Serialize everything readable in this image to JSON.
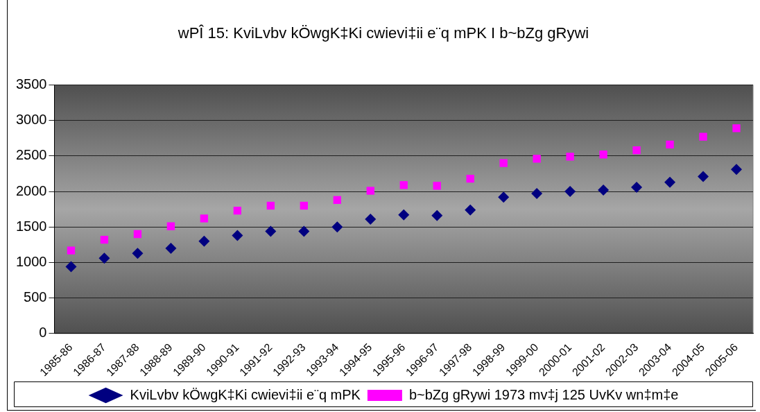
{
  "chart_data": {
    "type": "scatter",
    "title": "wPÎ 15: KviLvbv kÖwgK‡Ki cwievi‡ii e¨q mPK I b~bZg gRywi",
    "categories": [
      "1985-86",
      "1986-87",
      "1987-88",
      "1988-89",
      "1989-90",
      "1990-91",
      "1991-92",
      "1992-93",
      "1993-94",
      "1994-95",
      "1995-96",
      "1996-97",
      "1997-98",
      "1998-99",
      "1999-00",
      "2000-01",
      "2001-02",
      "2002-03",
      "2003-04",
      "2004-05",
      "2005-06"
    ],
    "series": [
      {
        "name": "KviLvbv kÖwgK‡Ki cwievi‡ii e¨q mPK",
        "color": "#000080",
        "marker": "diamond",
        "values": [
          940,
          1060,
          1130,
          1200,
          1300,
          1380,
          1440,
          1440,
          1500,
          1610,
          1670,
          1660,
          1740,
          1920,
          1970,
          2000,
          2020,
          2060,
          2130,
          2210,
          2310
        ]
      },
      {
        "name": "b~bZg gRywi 1973 mv‡j 125 UvKv wn‡m‡e",
        "color": "#ff00ff",
        "marker": "square",
        "values": [
          1170,
          1320,
          1400,
          1510,
          1620,
          1730,
          1800,
          1800,
          1880,
          2010,
          2090,
          2080,
          2180,
          2400,
          2460,
          2490,
          2520,
          2580,
          2660,
          2770,
          2890
        ]
      }
    ],
    "ylim": [
      0,
      3500
    ],
    "yticks": [
      0,
      500,
      1000,
      1500,
      2000,
      2500,
      3000,
      3500
    ],
    "grid": "y",
    "legend": "bottom"
  }
}
